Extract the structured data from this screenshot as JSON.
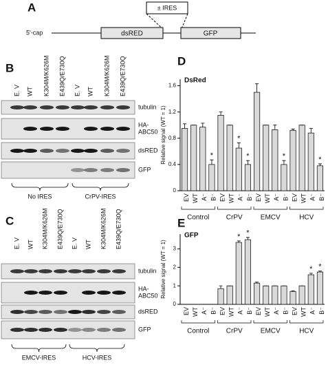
{
  "panel_a": {
    "letter": "A",
    "insert": "± IRES",
    "cap": "5'-cap",
    "genes": [
      "dsRED",
      "GFP"
    ]
  },
  "panel_b": {
    "letter": "B",
    "lanes": [
      "E. V",
      "WT",
      "K304M/K626M",
      "E439Q/E730Q",
      "E. V",
      "WT",
      "K304M/K626M",
      "E439Q/E730Q"
    ],
    "blots": [
      [
        "tubulin"
      ],
      [
        "HA-",
        "ABC50"
      ],
      [
        "dsRED"
      ],
      [
        "GFP"
      ]
    ],
    "groups": [
      "No IRES",
      "CrPV-IRES"
    ]
  },
  "panel_c": {
    "letter": "C",
    "lanes": [
      "E. V",
      "WT",
      "K304M/K626M",
      "E439Q/E730Q",
      "E. V",
      "WT",
      "K304M/K626M",
      "E439Q/E730Q"
    ],
    "blots": [
      [
        "tubulin"
      ],
      [
        "HA-",
        "ABC50"
      ],
      [
        "dsRED"
      ],
      [
        "GFP"
      ]
    ],
    "groups": [
      "EMCV-IRES",
      "HCV-IRES"
    ]
  },
  "chart_data": [
    {
      "type": "bar",
      "panel": "D",
      "title": "DsRed",
      "y_label": "Relative signal (WT = 1)",
      "categories": [
        "EV",
        "WT",
        "A⁻",
        "B⁻",
        "EV",
        "WT",
        "A⁻",
        "B⁻",
        "EV",
        "WT",
        "A⁻",
        "B⁻",
        "EV",
        "WT",
        "A⁻",
        "B⁻"
      ],
      "groups": [
        "Control",
        "CrPV",
        "EMCV",
        "HCV"
      ],
      "values": [
        0.95,
        1.0,
        0.97,
        0.4,
        1.15,
        1.0,
        0.65,
        0.4,
        1.5,
        1.0,
        0.93,
        0.4,
        0.92,
        1.0,
        0.88,
        0.38
      ],
      "errors": [
        0.07,
        0,
        0.06,
        0.07,
        0.05,
        0,
        0.08,
        0.06,
        0.13,
        0,
        0.07,
        0.06,
        0.02,
        0,
        0.07,
        0.03
      ],
      "significance": [
        null,
        null,
        null,
        "*",
        null,
        null,
        "*",
        "*",
        null,
        null,
        null,
        "*",
        null,
        null,
        null,
        "*"
      ],
      "color": "#d9d9d9",
      "ylim": [
        0,
        1.7
      ],
      "yticks": [
        0,
        0.4,
        0.8,
        1.2,
        1.6
      ]
    },
    {
      "type": "bar",
      "panel": "E",
      "title": "GFP",
      "y_label": "Relative signal (WT = 1)",
      "categories": [
        "EV",
        "WT",
        "A⁻",
        "B⁻",
        "EV",
        "WT",
        "A⁻",
        "B⁻",
        "EV",
        "WT",
        "A⁻",
        "B⁻",
        "EV",
        "WT",
        "A⁻",
        "B⁻"
      ],
      "groups": [
        "Control",
        "CrPV",
        "EMCV",
        "HCV"
      ],
      "values": [
        null,
        null,
        null,
        null,
        0.85,
        1.0,
        3.35,
        3.5,
        1.15,
        1.0,
        1.0,
        1.0,
        0.7,
        1.0,
        1.6,
        1.75
      ],
      "errors": [
        null,
        null,
        null,
        null,
        0.15,
        0,
        0.08,
        0.12,
        0.05,
        0,
        0,
        0,
        0.03,
        0,
        0.08,
        0.05
      ],
      "significance": [
        null,
        null,
        null,
        null,
        null,
        null,
        "*",
        "*",
        null,
        null,
        null,
        null,
        null,
        null,
        "*",
        "*"
      ],
      "color": "#d9d9d9",
      "ylim": [
        0,
        3.8
      ],
      "yticks": [
        0,
        1,
        2,
        3
      ]
    }
  ]
}
